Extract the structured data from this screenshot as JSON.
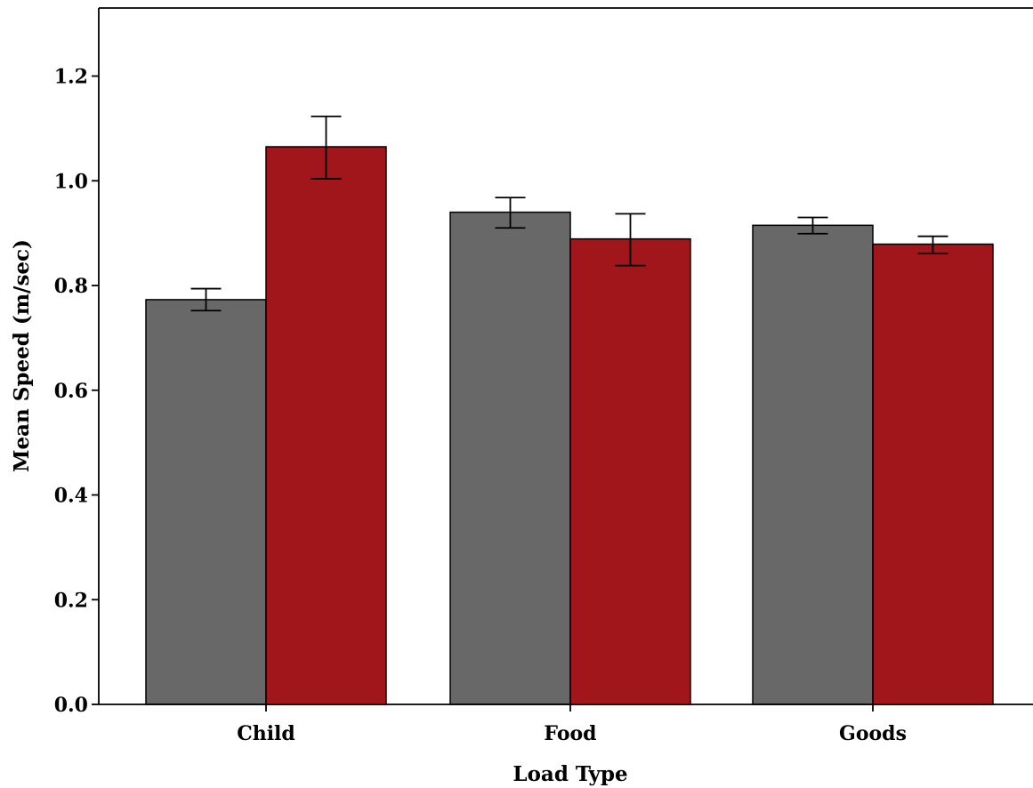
{
  "chart_data": {
    "type": "bar",
    "title": "",
    "xlabel": "Load Type",
    "ylabel": "Mean Speed (m/sec)",
    "categories": [
      "Child",
      "Food",
      "Goods"
    ],
    "ylim": [
      0,
      1.33
    ],
    "yticks": [
      "0.0",
      "0.2",
      "0.4",
      "0.6",
      "0.8",
      "1.0",
      "1.2"
    ],
    "grid": false,
    "legend": "none",
    "series": [
      {
        "color": "#686868",
        "values": [
          0.773,
          0.94,
          0.915
        ],
        "error_low": [
          0.752,
          0.91,
          0.899
        ],
        "error_high": [
          0.794,
          0.968,
          0.93
        ]
      },
      {
        "color": "#a0161b",
        "values": [
          1.065,
          0.889,
          0.879
        ],
        "error_low": [
          1.004,
          0.838,
          0.861
        ],
        "error_high": [
          1.123,
          0.937,
          0.894
        ]
      }
    ]
  }
}
